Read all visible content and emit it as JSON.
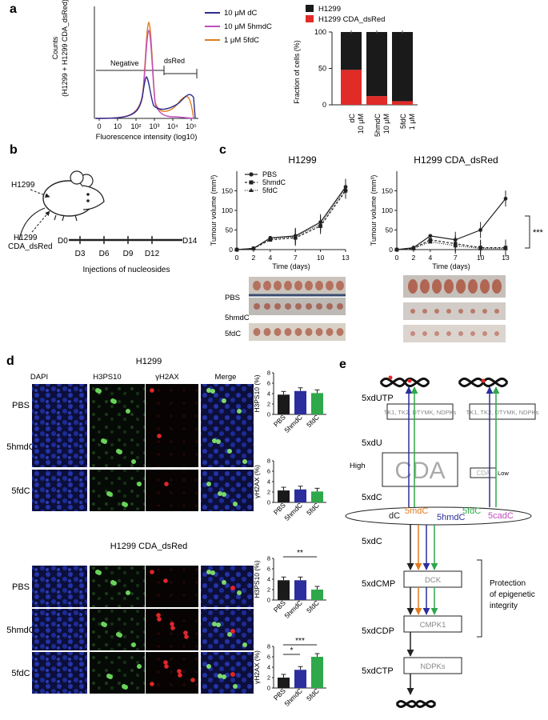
{
  "panel_letters": {
    "a": "a",
    "b": "b",
    "c": "c",
    "d": "d",
    "e": "e"
  },
  "panel_a": {
    "histogram": {
      "ylabel": "Counts",
      "ylabel2": "(H1299 + H1299 CDA_dsRed)",
      "xlabel": "Fluorescence intensity (log10)",
      "xticks": [
        "0",
        "10",
        "10²",
        "10³",
        "10⁴",
        "10⁵"
      ],
      "gate_negative": "Negative",
      "gate_dsred": "dsRed",
      "legend": [
        {
          "label": "10 μM dC",
          "color": "#2b2c8c"
        },
        {
          "label": "10 μM 5hmdC",
          "color": "#c04dbf"
        },
        {
          "label": "1 μM 5fdC",
          "color": "#e07b1e"
        }
      ]
    },
    "bar": {
      "legend": [
        {
          "label": "H1299",
          "color": "#1a1a1a"
        },
        {
          "label": "H1299 CDA_dsRed",
          "color": "#e02b27"
        }
      ],
      "ylabel": "Fraction of cells (%)",
      "yticks": [
        "0",
        "50",
        "100"
      ]
    }
  },
  "chart_data": [
    {
      "type": "bar",
      "title": "",
      "categories": [
        "dC 10 μM",
        "5hmdC 10 μM",
        "5fdC 1 μM"
      ],
      "series": [
        {
          "name": "H1299 CDA_dsRed",
          "values": [
            48,
            12,
            5
          ]
        },
        {
          "name": "H1299",
          "values": [
            52,
            88,
            95
          ]
        }
      ],
      "ylabel": "Fraction of cells (%)",
      "ylim": [
        0,
        100
      ]
    },
    {
      "type": "line",
      "title": "H1299",
      "x": [
        0,
        2,
        4,
        7,
        10,
        13
      ],
      "series": [
        {
          "name": "PBS",
          "values": [
            0,
            3,
            30,
            35,
            70,
            160
          ]
        },
        {
          "name": "5hmdC",
          "values": [
            0,
            3,
            25,
            30,
            60,
            150
          ]
        },
        {
          "name": "5fdC",
          "values": [
            0,
            3,
            28,
            33,
            65,
            155
          ]
        }
      ],
      "xlabel": "Time (days)",
      "ylabel": "Tumour volume (mm³)"
    },
    {
      "type": "line",
      "title": "H1299 CDA_dsRed",
      "x": [
        0,
        2,
        4,
        7,
        10,
        13
      ],
      "series": [
        {
          "name": "PBS",
          "values": [
            0,
            5,
            35,
            25,
            50,
            130
          ]
        },
        {
          "name": "5hmdC",
          "values": [
            0,
            3,
            25,
            15,
            5,
            5
          ]
        },
        {
          "name": "5fdC",
          "values": [
            0,
            3,
            20,
            10,
            3,
            3
          ]
        }
      ],
      "xlabel": "Time (days)",
      "ylabel": "Tumour volume (mm³)"
    },
    {
      "type": "bar",
      "title": "H1299 H3PS10",
      "categories": [
        "PBS",
        "5hmdC",
        "5fdC"
      ],
      "values": [
        3.8,
        4.5,
        4.1
      ],
      "ylabel": "H3PS10 (%)",
      "ylim": [
        0,
        8
      ]
    },
    {
      "type": "bar",
      "title": "H1299 γH2AX",
      "categories": [
        "PBS",
        "5hmdC",
        "5fdC"
      ],
      "values": [
        2.3,
        2.5,
        2.1
      ],
      "ylabel": "γH2AX (%)",
      "ylim": [
        0,
        8
      ]
    },
    {
      "type": "bar",
      "title": "H1299 CDA_dsRed H3PS10",
      "categories": [
        "PBS",
        "5hmdC",
        "5fdC"
      ],
      "values": [
        3.8,
        3.8,
        2.0
      ],
      "ylabel": "H3PS10 (%)",
      "ylim": [
        0,
        8
      ]
    },
    {
      "type": "bar",
      "title": "H1299 CDA_dsRed γH2AX",
      "categories": [
        "PBS",
        "5hmdC",
        "5fdC"
      ],
      "values": [
        2.0,
        3.5,
        6.0
      ],
      "ylabel": "γH2AX (%)",
      "ylim": [
        0,
        8
      ]
    }
  ],
  "bar_colors": [
    "#1a1a1a",
    "#2b2e9c",
    "#2ea84a"
  ],
  "panel_b": {
    "cell1": "H1299",
    "cell2a": "H1299",
    "cell2b": "CDA_dsRed",
    "d0": "D0",
    "d14": "D14",
    "days": [
      "D3",
      "D6",
      "D9",
      "D12"
    ],
    "caption": "Injections of nucleosides"
  },
  "panel_c": {
    "title1": "H1299",
    "title2": "H1299 CDA_dsRed",
    "ylabel": "Tumour volume (mm³)",
    "xlabel": "Time (days)",
    "xticks": [
      "0",
      "2",
      "4",
      "7",
      "10",
      "13"
    ],
    "yticks": [
      "0",
      "50",
      "100",
      "150"
    ],
    "legend": [
      "PBS",
      "5hmdC",
      "5fdC"
    ],
    "sig": "***",
    "photo_labels": [
      "PBS",
      "5hmdC",
      "5fdC"
    ]
  },
  "panel_d": {
    "title1": "H1299",
    "title2": "H1299 CDA_dsRed",
    "columns": [
      "DAPI",
      "H3PS10",
      "γH2AX",
      "Merge"
    ],
    "rows": [
      "PBS",
      "5hmdC",
      "5fdC"
    ],
    "ylabel_h3": "H3PS10 (%)",
    "ylabel_g": "γH2AX (%)",
    "yticks": [
      "0",
      "2",
      "4",
      "6",
      "8"
    ],
    "xcats": [
      "PBS",
      "5hmdC",
      "5fdC"
    ],
    "sig_h3": "**",
    "sig_g1": "***",
    "sig_g2": "*"
  },
  "panel_e": {
    "kinases": "TK1, TK2, DTYMK, NDPKs",
    "labels_left": [
      "5xdUTP",
      "5xdU",
      "High",
      "5xdC",
      "5xdC",
      "5xdCMP",
      "5xdCDP",
      "5xdCTP"
    ],
    "cda_big": "CDA",
    "cda_small": "CDA",
    "low": "Low",
    "nucleosides": [
      {
        "label": "dC",
        "color": "#222222"
      },
      {
        "label": "5mdC",
        "color": "#e07b1e"
      },
      {
        "label": "5hmdC",
        "color": "#2b2e9c"
      },
      {
        "label": "5fdC",
        "color": "#2ea84a"
      },
      {
        "label": "5cadC",
        "color": "#c04dbf"
      }
    ],
    "enzymes": [
      "DCK",
      "CMPK1",
      "NDPKs"
    ],
    "protection1": "Protection",
    "protection2": "of epigenetic",
    "protection3": "integrity"
  }
}
